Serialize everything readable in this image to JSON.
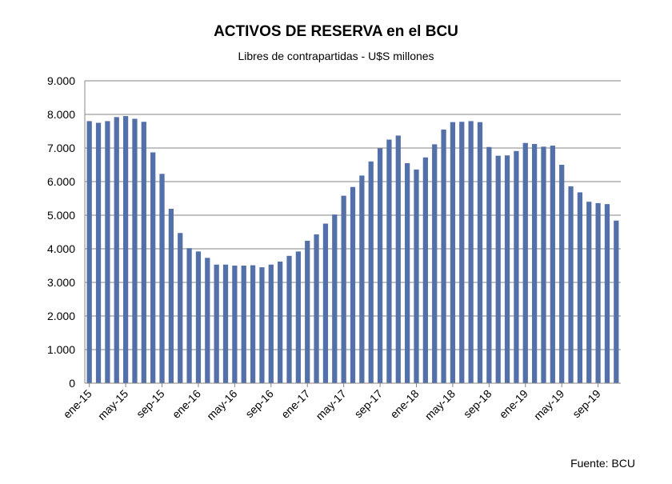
{
  "chart_data": {
    "type": "bar",
    "title": "ACTIVOS DE RESERVA en el BCU",
    "subtitle": "Libres de contrapartidas - U$S millones",
    "source": "Fuente: BCU",
    "xlabel": "",
    "ylabel": "",
    "ylim": [
      0,
      9000
    ],
    "y_ticks": [
      "0",
      "1.000",
      "2.000",
      "3.000",
      "4.000",
      "5.000",
      "6.000",
      "7.000",
      "8.000",
      "9.000"
    ],
    "x_tick_labels": [
      "ene-15",
      "may-15",
      "sep-15",
      "ene-16",
      "may-16",
      "sep-16",
      "ene-17",
      "may-17",
      "sep-17",
      "ene-18",
      "may-18",
      "sep-18",
      "ene-19",
      "may-19",
      "sep-19"
    ],
    "categories": [
      "ene-15",
      "feb-15",
      "mar-15",
      "abr-15",
      "may-15",
      "jun-15",
      "jul-15",
      "ago-15",
      "sep-15",
      "oct-15",
      "nov-15",
      "dic-15",
      "ene-16",
      "feb-16",
      "mar-16",
      "abr-16",
      "may-16",
      "jun-16",
      "jul-16",
      "ago-16",
      "sep-16",
      "oct-16",
      "nov-16",
      "dic-16",
      "ene-17",
      "feb-17",
      "mar-17",
      "abr-17",
      "may-17",
      "jun-17",
      "jul-17",
      "ago-17",
      "sep-17",
      "oct-17",
      "nov-17",
      "dic-17",
      "ene-18",
      "feb-18",
      "mar-18",
      "abr-18",
      "may-18",
      "jun-18",
      "jul-18",
      "ago-18",
      "sep-18",
      "oct-18",
      "nov-18",
      "dic-18",
      "ene-19",
      "feb-19",
      "mar-19",
      "abr-19",
      "may-19",
      "jun-19",
      "jul-19",
      "ago-19",
      "sep-19",
      "oct-19",
      "nov-19"
    ],
    "values": [
      7800,
      7750,
      7800,
      7920,
      7950,
      7870,
      7780,
      6870,
      6230,
      5190,
      4470,
      4020,
      3920,
      3730,
      3530,
      3530,
      3500,
      3500,
      3510,
      3450,
      3530,
      3620,
      3790,
      3920,
      4240,
      4430,
      4750,
      5020,
      5580,
      5840,
      6180,
      6600,
      6990,
      7250,
      7370,
      6550,
      6360,
      6720,
      7110,
      7550,
      7770,
      7780,
      7800,
      7770,
      7030,
      6770,
      6780,
      6910,
      7150,
      7120,
      7040,
      7070,
      6500,
      5860,
      5680,
      5400,
      5360,
      5330,
      4840
    ],
    "colors": {
      "bar": "#5470a8",
      "grid": "#878787"
    },
    "grid": true,
    "legend": "none"
  }
}
